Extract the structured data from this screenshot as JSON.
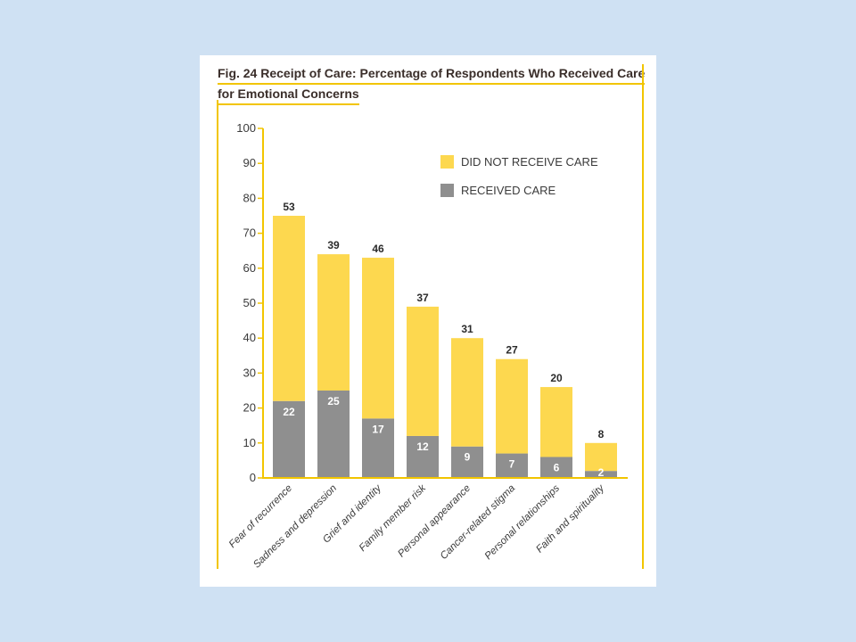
{
  "figure": {
    "title_line1": "Fig. 24 Receipt of Care: Percentage of Respondents Who Received Care",
    "title_line2": "for Emotional Concerns"
  },
  "colors": {
    "background": "#cfe1f3",
    "card": "#ffffff",
    "accent_yellow": "#f2c500",
    "not_received": "#fdd84f",
    "received": "#8f8f8f"
  },
  "chart_data": {
    "type": "bar",
    "stacked": true,
    "title": "Fig. 24 Receipt of Care: Percentage of Respondents Who Received Care for Emotional Concerns",
    "categories": [
      "Fear of recurrence",
      "Sadness and depression",
      "Grief and identity",
      "Family member risk",
      "Personal appearance",
      "Cancer-related stigma",
      "Personal relationships",
      "Faith and spirituality"
    ],
    "series": [
      {
        "name": "RECEIVED CARE",
        "values": [
          22,
          25,
          17,
          12,
          9,
          7,
          6,
          2
        ]
      },
      {
        "name": "DID NOT RECEIVE CARE",
        "values": [
          53,
          39,
          46,
          37,
          31,
          27,
          20,
          8
        ]
      }
    ],
    "ylim": [
      0,
      100
    ],
    "yticks": [
      0,
      10,
      20,
      30,
      40,
      50,
      60,
      70,
      80,
      90,
      100
    ],
    "grid": false,
    "legend_position": "top-right"
  }
}
